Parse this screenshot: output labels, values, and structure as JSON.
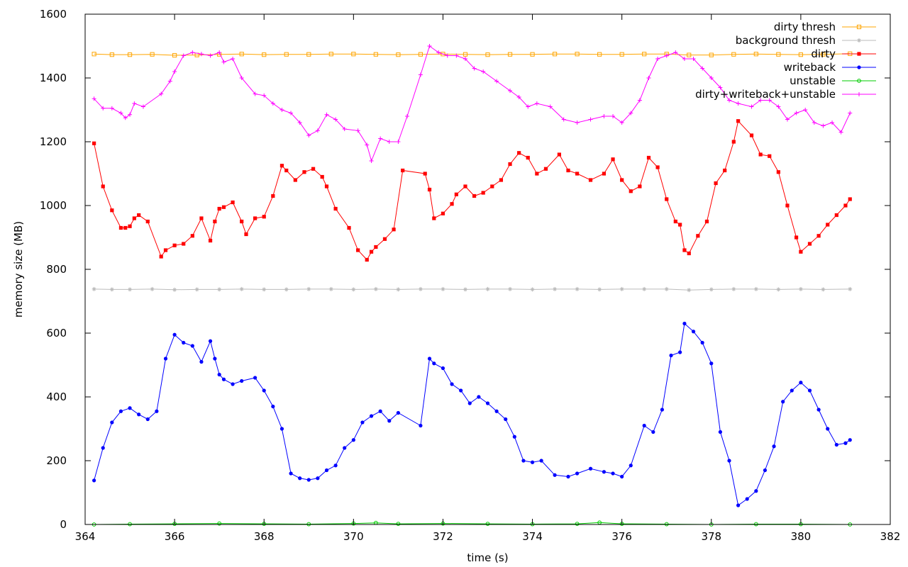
{
  "chart_data": {
    "type": "line",
    "title": "",
    "xlabel": "time (s)",
    "ylabel": "memory size (MB)",
    "xlim": [
      364,
      382
    ],
    "ylim": [
      0,
      1600
    ],
    "x_ticks": [
      364,
      366,
      368,
      370,
      372,
      374,
      376,
      378,
      380,
      382
    ],
    "y_ticks": [
      0,
      200,
      400,
      600,
      800,
      1000,
      1200,
      1400,
      1600
    ],
    "grid": false,
    "legend_position": "top-right",
    "series": [
      {
        "name": "dirty thresh",
        "color": "#ffa500",
        "marker": "square-open",
        "x": [
          364.2,
          364.6,
          365.0,
          365.5,
          366.0,
          366.5,
          367.0,
          367.5,
          368.0,
          368.5,
          369.0,
          369.5,
          370.0,
          370.5,
          371.0,
          371.5,
          372.0,
          372.5,
          373.0,
          373.5,
          374.0,
          374.5,
          375.0,
          375.5,
          376.0,
          376.5,
          377.0,
          377.5,
          378.0,
          378.5,
          379.0,
          379.5,
          380.0,
          380.5,
          381.1
        ],
        "y": [
          1475,
          1473,
          1473,
          1474,
          1471,
          1472,
          1474,
          1475,
          1473,
          1474,
          1474,
          1475,
          1475,
          1474,
          1473,
          1474,
          1475,
          1474,
          1473,
          1474,
          1474,
          1475,
          1475,
          1474,
          1474,
          1475,
          1475,
          1472,
          1472,
          1474,
          1475,
          1474,
          1473,
          1474,
          1476
        ]
      },
      {
        "name": "background thresh",
        "color": "#bbbbbb",
        "marker": "star",
        "x": [
          364.2,
          364.6,
          365.0,
          365.5,
          366.0,
          366.5,
          367.0,
          367.5,
          368.0,
          368.5,
          369.0,
          369.5,
          370.0,
          370.5,
          371.0,
          371.5,
          372.0,
          372.5,
          373.0,
          373.5,
          374.0,
          374.5,
          375.0,
          375.5,
          376.0,
          376.5,
          377.0,
          377.5,
          378.0,
          378.5,
          379.0,
          379.5,
          380.0,
          380.5,
          381.1
        ],
        "y": [
          738,
          737,
          737,
          738,
          736,
          737,
          737,
          738,
          737,
          737,
          738,
          738,
          737,
          738,
          737,
          738,
          738,
          737,
          738,
          738,
          737,
          738,
          738,
          737,
          738,
          738,
          738,
          735,
          737,
          738,
          738,
          737,
          738,
          737,
          738
        ]
      },
      {
        "name": "dirty",
        "color": "#ff0000",
        "marker": "square-filled",
        "x": [
          364.2,
          364.4,
          364.6,
          364.8,
          364.9,
          365.0,
          365.1,
          365.2,
          365.4,
          365.7,
          365.8,
          366.0,
          366.2,
          366.4,
          366.6,
          366.8,
          366.9,
          367.0,
          367.1,
          367.3,
          367.5,
          367.6,
          367.8,
          368.0,
          368.2,
          368.4,
          368.5,
          368.7,
          368.9,
          369.1,
          369.3,
          369.4,
          369.6,
          369.9,
          370.1,
          370.3,
          370.4,
          370.5,
          370.7,
          370.9,
          371.1,
          371.6,
          371.7,
          371.8,
          372.0,
          372.2,
          372.3,
          372.5,
          372.7,
          372.9,
          373.1,
          373.3,
          373.5,
          373.7,
          373.9,
          374.1,
          374.3,
          374.6,
          374.8,
          375.0,
          375.3,
          375.6,
          375.8,
          376.0,
          376.2,
          376.4,
          376.6,
          376.8,
          377.0,
          377.2,
          377.3,
          377.4,
          377.5,
          377.7,
          377.9,
          378.1,
          378.3,
          378.5,
          378.6,
          378.9,
          379.1,
          379.3,
          379.5,
          379.7,
          379.9,
          380.0,
          380.2,
          380.4,
          380.6,
          380.8,
          381.0,
          381.1
        ],
        "y": [
          1195,
          1060,
          985,
          930,
          930,
          935,
          960,
          970,
          950,
          840,
          860,
          875,
          880,
          905,
          960,
          890,
          950,
          990,
          995,
          1010,
          950,
          910,
          960,
          965,
          1030,
          1125,
          1110,
          1080,
          1105,
          1115,
          1090,
          1060,
          990,
          930,
          860,
          830,
          855,
          870,
          895,
          925,
          1110,
          1100,
          1050,
          960,
          975,
          1005,
          1035,
          1060,
          1030,
          1040,
          1060,
          1080,
          1130,
          1165,
          1150,
          1100,
          1115,
          1160,
          1110,
          1100,
          1080,
          1100,
          1145,
          1080,
          1045,
          1060,
          1150,
          1120,
          1020,
          950,
          940,
          860,
          850,
          905,
          950,
          1070,
          1110,
          1200,
          1265,
          1220,
          1160,
          1155,
          1105,
          1000,
          900,
          855,
          880,
          905,
          940,
          970,
          1000,
          1020
        ]
      },
      {
        "name": "writeback",
        "color": "#0000ff",
        "marker": "circle-filled",
        "x": [
          364.2,
          364.4,
          364.6,
          364.8,
          365.0,
          365.2,
          365.4,
          365.6,
          365.8,
          366.0,
          366.2,
          366.4,
          366.6,
          366.8,
          366.9,
          367.0,
          367.1,
          367.3,
          367.5,
          367.8,
          368.0,
          368.2,
          368.4,
          368.6,
          368.8,
          369.0,
          369.2,
          369.4,
          369.6,
          369.8,
          370.0,
          370.2,
          370.4,
          370.6,
          370.8,
          371.0,
          371.5,
          371.7,
          371.8,
          372.0,
          372.2,
          372.4,
          372.6,
          372.8,
          373.0,
          373.2,
          373.4,
          373.6,
          373.8,
          374.0,
          374.2,
          374.5,
          374.8,
          375.0,
          375.3,
          375.6,
          375.8,
          376.0,
          376.2,
          376.5,
          376.7,
          376.9,
          377.1,
          377.3,
          377.4,
          377.6,
          377.8,
          378.0,
          378.2,
          378.4,
          378.6,
          378.8,
          379.0,
          379.2,
          379.4,
          379.6,
          379.8,
          380.0,
          380.2,
          380.4,
          380.6,
          380.8,
          381.0,
          381.1
        ],
        "y": [
          138,
          240,
          320,
          355,
          365,
          345,
          330,
          355,
          520,
          595,
          570,
          560,
          510,
          575,
          520,
          470,
          455,
          440,
          450,
          460,
          420,
          370,
          300,
          160,
          145,
          140,
          145,
          170,
          185,
          240,
          265,
          320,
          340,
          355,
          325,
          350,
          310,
          520,
          505,
          490,
          440,
          420,
          380,
          400,
          380,
          355,
          330,
          275,
          200,
          195,
          200,
          155,
          150,
          160,
          175,
          165,
          160,
          150,
          185,
          310,
          290,
          360,
          530,
          540,
          630,
          605,
          570,
          505,
          290,
          200,
          60,
          80,
          105,
          170,
          245,
          385,
          420,
          445,
          420,
          360,
          300,
          250,
          255,
          265
        ]
      },
      {
        "name": "unstable",
        "color": "#00cc00",
        "marker": "circle-open",
        "x": [
          364.2,
          365.0,
          366.0,
          367.0,
          368.0,
          369.0,
          370.0,
          370.5,
          371.0,
          372.0,
          373.0,
          374.0,
          375.0,
          375.5,
          376.0,
          377.0,
          378.0,
          379.0,
          380.0,
          381.1
        ],
        "y": [
          0,
          1,
          2,
          3,
          2,
          1,
          3,
          5,
          2,
          3,
          2,
          1,
          2,
          6,
          2,
          1,
          0,
          1,
          1,
          0
        ]
      },
      {
        "name": "dirty+writeback+unstable",
        "color": "#ff00ff",
        "marker": "plus",
        "x": [
          364.2,
          364.4,
          364.6,
          364.8,
          364.9,
          365.0,
          365.1,
          365.3,
          365.7,
          365.9,
          366.0,
          366.2,
          366.4,
          366.6,
          366.8,
          367.0,
          367.1,
          367.3,
          367.5,
          367.8,
          368.0,
          368.2,
          368.4,
          368.6,
          368.8,
          369.0,
          369.2,
          369.4,
          369.6,
          369.8,
          370.1,
          370.3,
          370.4,
          370.6,
          370.8,
          371.0,
          371.2,
          371.5,
          371.7,
          371.9,
          372.1,
          372.3,
          372.5,
          372.7,
          372.9,
          373.2,
          373.5,
          373.7,
          373.9,
          374.1,
          374.4,
          374.7,
          375.0,
          375.3,
          375.6,
          375.8,
          376.0,
          376.2,
          376.4,
          376.6,
          376.8,
          377.0,
          377.2,
          377.4,
          377.6,
          377.8,
          378.0,
          378.2,
          378.4,
          378.6,
          378.9,
          379.1,
          379.3,
          379.5,
          379.7,
          379.9,
          380.1,
          380.3,
          380.5,
          380.7,
          380.9,
          381.1
        ],
        "y": [
          1335,
          1305,
          1305,
          1290,
          1275,
          1285,
          1320,
          1310,
          1350,
          1390,
          1420,
          1470,
          1480,
          1475,
          1470,
          1480,
          1450,
          1460,
          1400,
          1350,
          1345,
          1320,
          1300,
          1290,
          1260,
          1220,
          1235,
          1285,
          1270,
          1240,
          1235,
          1190,
          1140,
          1210,
          1200,
          1200,
          1280,
          1410,
          1500,
          1480,
          1470,
          1470,
          1460,
          1430,
          1420,
          1390,
          1360,
          1340,
          1310,
          1320,
          1310,
          1270,
          1260,
          1270,
          1280,
          1280,
          1260,
          1290,
          1330,
          1400,
          1460,
          1470,
          1480,
          1460,
          1460,
          1430,
          1400,
          1370,
          1330,
          1320,
          1310,
          1330,
          1330,
          1310,
          1270,
          1290,
          1300,
          1260,
          1250,
          1260,
          1230,
          1290
        ]
      }
    ]
  }
}
